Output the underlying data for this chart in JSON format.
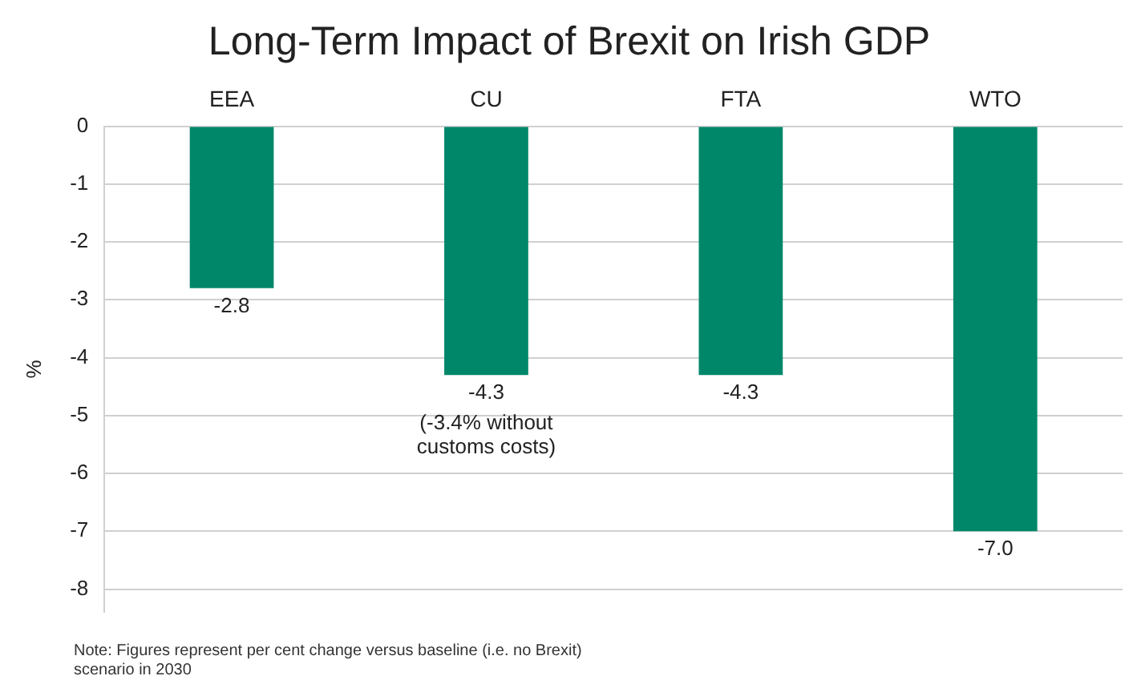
{
  "chart_data": {
    "type": "bar",
    "title": "Long-Term Impact of Brexit on Irish GDP",
    "ylabel": "%",
    "categories": [
      "EEA",
      "CU",
      "FTA",
      "WTO"
    ],
    "values": [
      -2.8,
      -4.3,
      -4.3,
      -7.0
    ],
    "value_labels": [
      "-2.8",
      "-4.3",
      "-4.3",
      "-7.0"
    ],
    "color": "#00876a",
    "ylim": [
      -8.4,
      0
    ],
    "yticks": [
      0,
      -1,
      -2,
      -3,
      -4,
      -5,
      -6,
      -7,
      -8
    ],
    "grid": "y",
    "legend": false,
    "annotations": [
      {
        "text": "(-3.4% without customs costs)",
        "x": "CU",
        "y": -4.3
      },
      "Note: Figures represent per cent change versus baseline (i.e. no Brexit) scenario in 2030"
    ]
  }
}
